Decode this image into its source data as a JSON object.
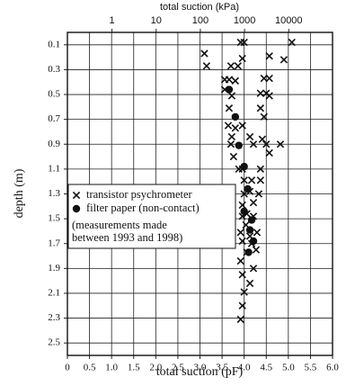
{
  "chart_data": {
    "type": "scatter",
    "xlabel": "total suction (pF)",
    "ylabel": "depth (m)",
    "x2label": "total suction (kPa)",
    "xlim": [
      0,
      6
    ],
    "ylim": [
      0,
      2.6
    ],
    "y_inverted": true,
    "xticks": [
      0,
      0.5,
      {
        "value": 1,
        "label": "1.0"
      },
      1.5,
      {
        "value": 2,
        "label": "2.0"
      },
      2.5,
      {
        "value": 3,
        "label": "3.0"
      },
      3.5,
      {
        "value": 4,
        "label": "4.0"
      },
      4.5,
      {
        "value": 5,
        "label": "5.0"
      },
      5.5,
      {
        "value": 6,
        "label": "6.0"
      }
    ],
    "yticks": [
      0.1,
      0.3,
      0.5,
      0.7,
      0.9,
      1.1,
      1.3,
      1.5,
      1.7,
      1.9,
      2.1,
      2.3,
      2.5
    ],
    "x2lim": [
      0.098,
      98000
    ],
    "x2scale": "log",
    "x2ticks": [
      1,
      10,
      100,
      1000,
      10000
    ],
    "grid": true,
    "series": [
      {
        "name": "transistor psychrometer",
        "marker": "x",
        "color": "#111111",
        "x": [
          3.92,
          4.0,
          5.08,
          3.1,
          3.15,
          3.7,
          3.86,
          4.57,
          4.9,
          3.96,
          3.56,
          3.66,
          3.8,
          4.45,
          4.57,
          3.56,
          3.72,
          4.37,
          4.5,
          4.57,
          3.66,
          4.37,
          4.45,
          3.64,
          3.8,
          3.96,
          4.13,
          4.41,
          3.72,
          3.7,
          4.21,
          4.5,
          4.82,
          4.57,
          3.76,
          3.96,
          3.88,
          4.37,
          4.0,
          4.17,
          4.37,
          4.0,
          4.13,
          4.21,
          4.33,
          3.96,
          4.06,
          3.96,
          4.21,
          4.04,
          3.92,
          4.13,
          4.29,
          3.72,
          3.96,
          4.17,
          4.06,
          4.27,
          3.92,
          4.21,
          3.96,
          4.13,
          4.0,
          3.96,
          3.92
        ],
        "values": [
          0.08,
          0.08,
          0.08,
          0.17,
          0.27,
          0.27,
          0.27,
          0.19,
          0.22,
          0.21,
          0.38,
          0.38,
          0.39,
          0.37,
          0.37,
          0.46,
          0.51,
          0.49,
          0.49,
          0.51,
          0.61,
          0.61,
          0.68,
          0.75,
          0.77,
          0.75,
          0.84,
          0.86,
          0.84,
          0.9,
          0.9,
          0.9,
          0.9,
          0.97,
          1.0,
          1.1,
          1.1,
          1.1,
          1.19,
          1.19,
          1.19,
          1.3,
          1.28,
          1.37,
          1.3,
          1.39,
          1.46,
          1.48,
          1.48,
          1.55,
          1.61,
          1.64,
          1.61,
          1.68,
          1.68,
          1.7,
          1.77,
          1.75,
          1.84,
          1.9,
          1.95,
          2.02,
          2.09,
          2.2,
          2.31
        ]
      },
      {
        "name": "filter paper (non-contact)",
        "marker": "o",
        "color": "#111111",
        "x": [
          3.66,
          3.8,
          3.88,
          4.0,
          4.08,
          4.0,
          4.17,
          4.13,
          4.21,
          4.1
        ],
        "values": [
          0.46,
          0.68,
          0.91,
          1.08,
          1.26,
          1.44,
          1.51,
          1.59,
          1.68,
          1.77
        ]
      }
    ],
    "annotation": [
      "(measurements made",
      "between 1993 and 1998)"
    ]
  }
}
